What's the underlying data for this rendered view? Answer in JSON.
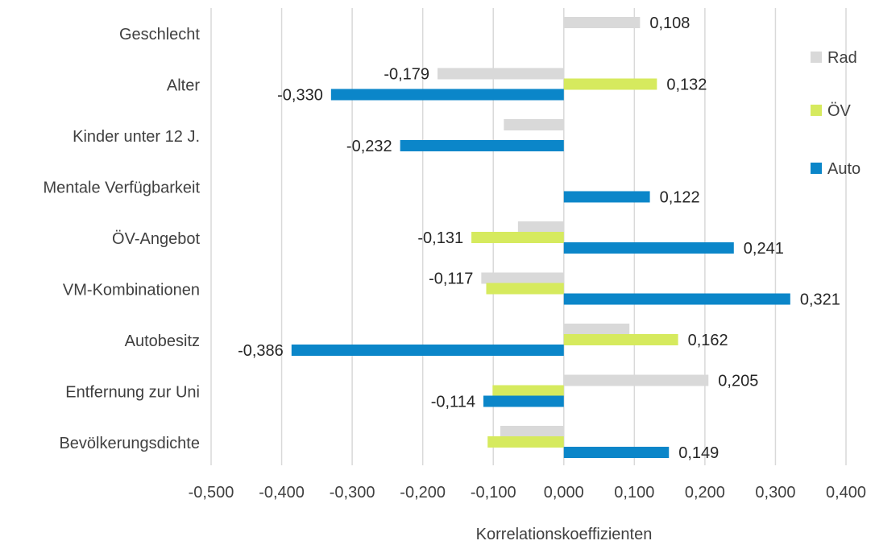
{
  "chart_data": {
    "type": "bar",
    "orientation": "horizontal",
    "categories": [
      "Geschlecht",
      "Alter",
      "Kinder unter 12 J.",
      "Mentale Verfügbarkeit",
      "ÖV-Angebot",
      "VM-Kombinationen",
      "Autobesitz",
      "Entfernung zur Uni",
      "Bevölkerungsdichte"
    ],
    "series": [
      {
        "name": "Rad",
        "color": "#d9d9d9",
        "values": [
          0.108,
          -0.179,
          -0.085,
          0.0,
          -0.065,
          -0.117,
          0.093,
          0.205,
          -0.09
        ],
        "labels": [
          "0,108",
          "-0,179",
          "",
          "",
          "",
          "-0,117",
          "",
          "0,205",
          ""
        ]
      },
      {
        "name": "ÖV",
        "color": "#d6ea5e",
        "values": [
          0.0,
          0.132,
          0.0,
          0.0,
          -0.131,
          -0.11,
          0.162,
          -0.101,
          -0.108
        ],
        "labels": [
          "",
          "0,132",
          "",
          "",
          "-0,131",
          "",
          "0,162",
          "",
          ""
        ]
      },
      {
        "name": "Auto",
        "color": "#0b86c9",
        "values": [
          0.0,
          -0.33,
          -0.232,
          0.122,
          0.241,
          0.321,
          -0.386,
          -0.114,
          0.149
        ],
        "labels": [
          "",
          "-0,330",
          "-0,232",
          "0,122",
          "0,241",
          "0,321",
          "-0,386",
          "-0,114",
          "0,149"
        ]
      }
    ],
    "xlim": [
      -0.5,
      0.4
    ],
    "xticks": [
      "-0,500",
      "-0,400",
      "-0,300",
      "-0,200",
      "-0,100",
      "0,000",
      "0,100",
      "0,200",
      "0,300",
      "0,400"
    ],
    "xlabel": "Korrelationskoeffizienten",
    "ylabel": "",
    "title": "",
    "grid": "vertical",
    "legend": [
      "Rad",
      "ÖV",
      "Auto"
    ],
    "legend_position": "right"
  }
}
